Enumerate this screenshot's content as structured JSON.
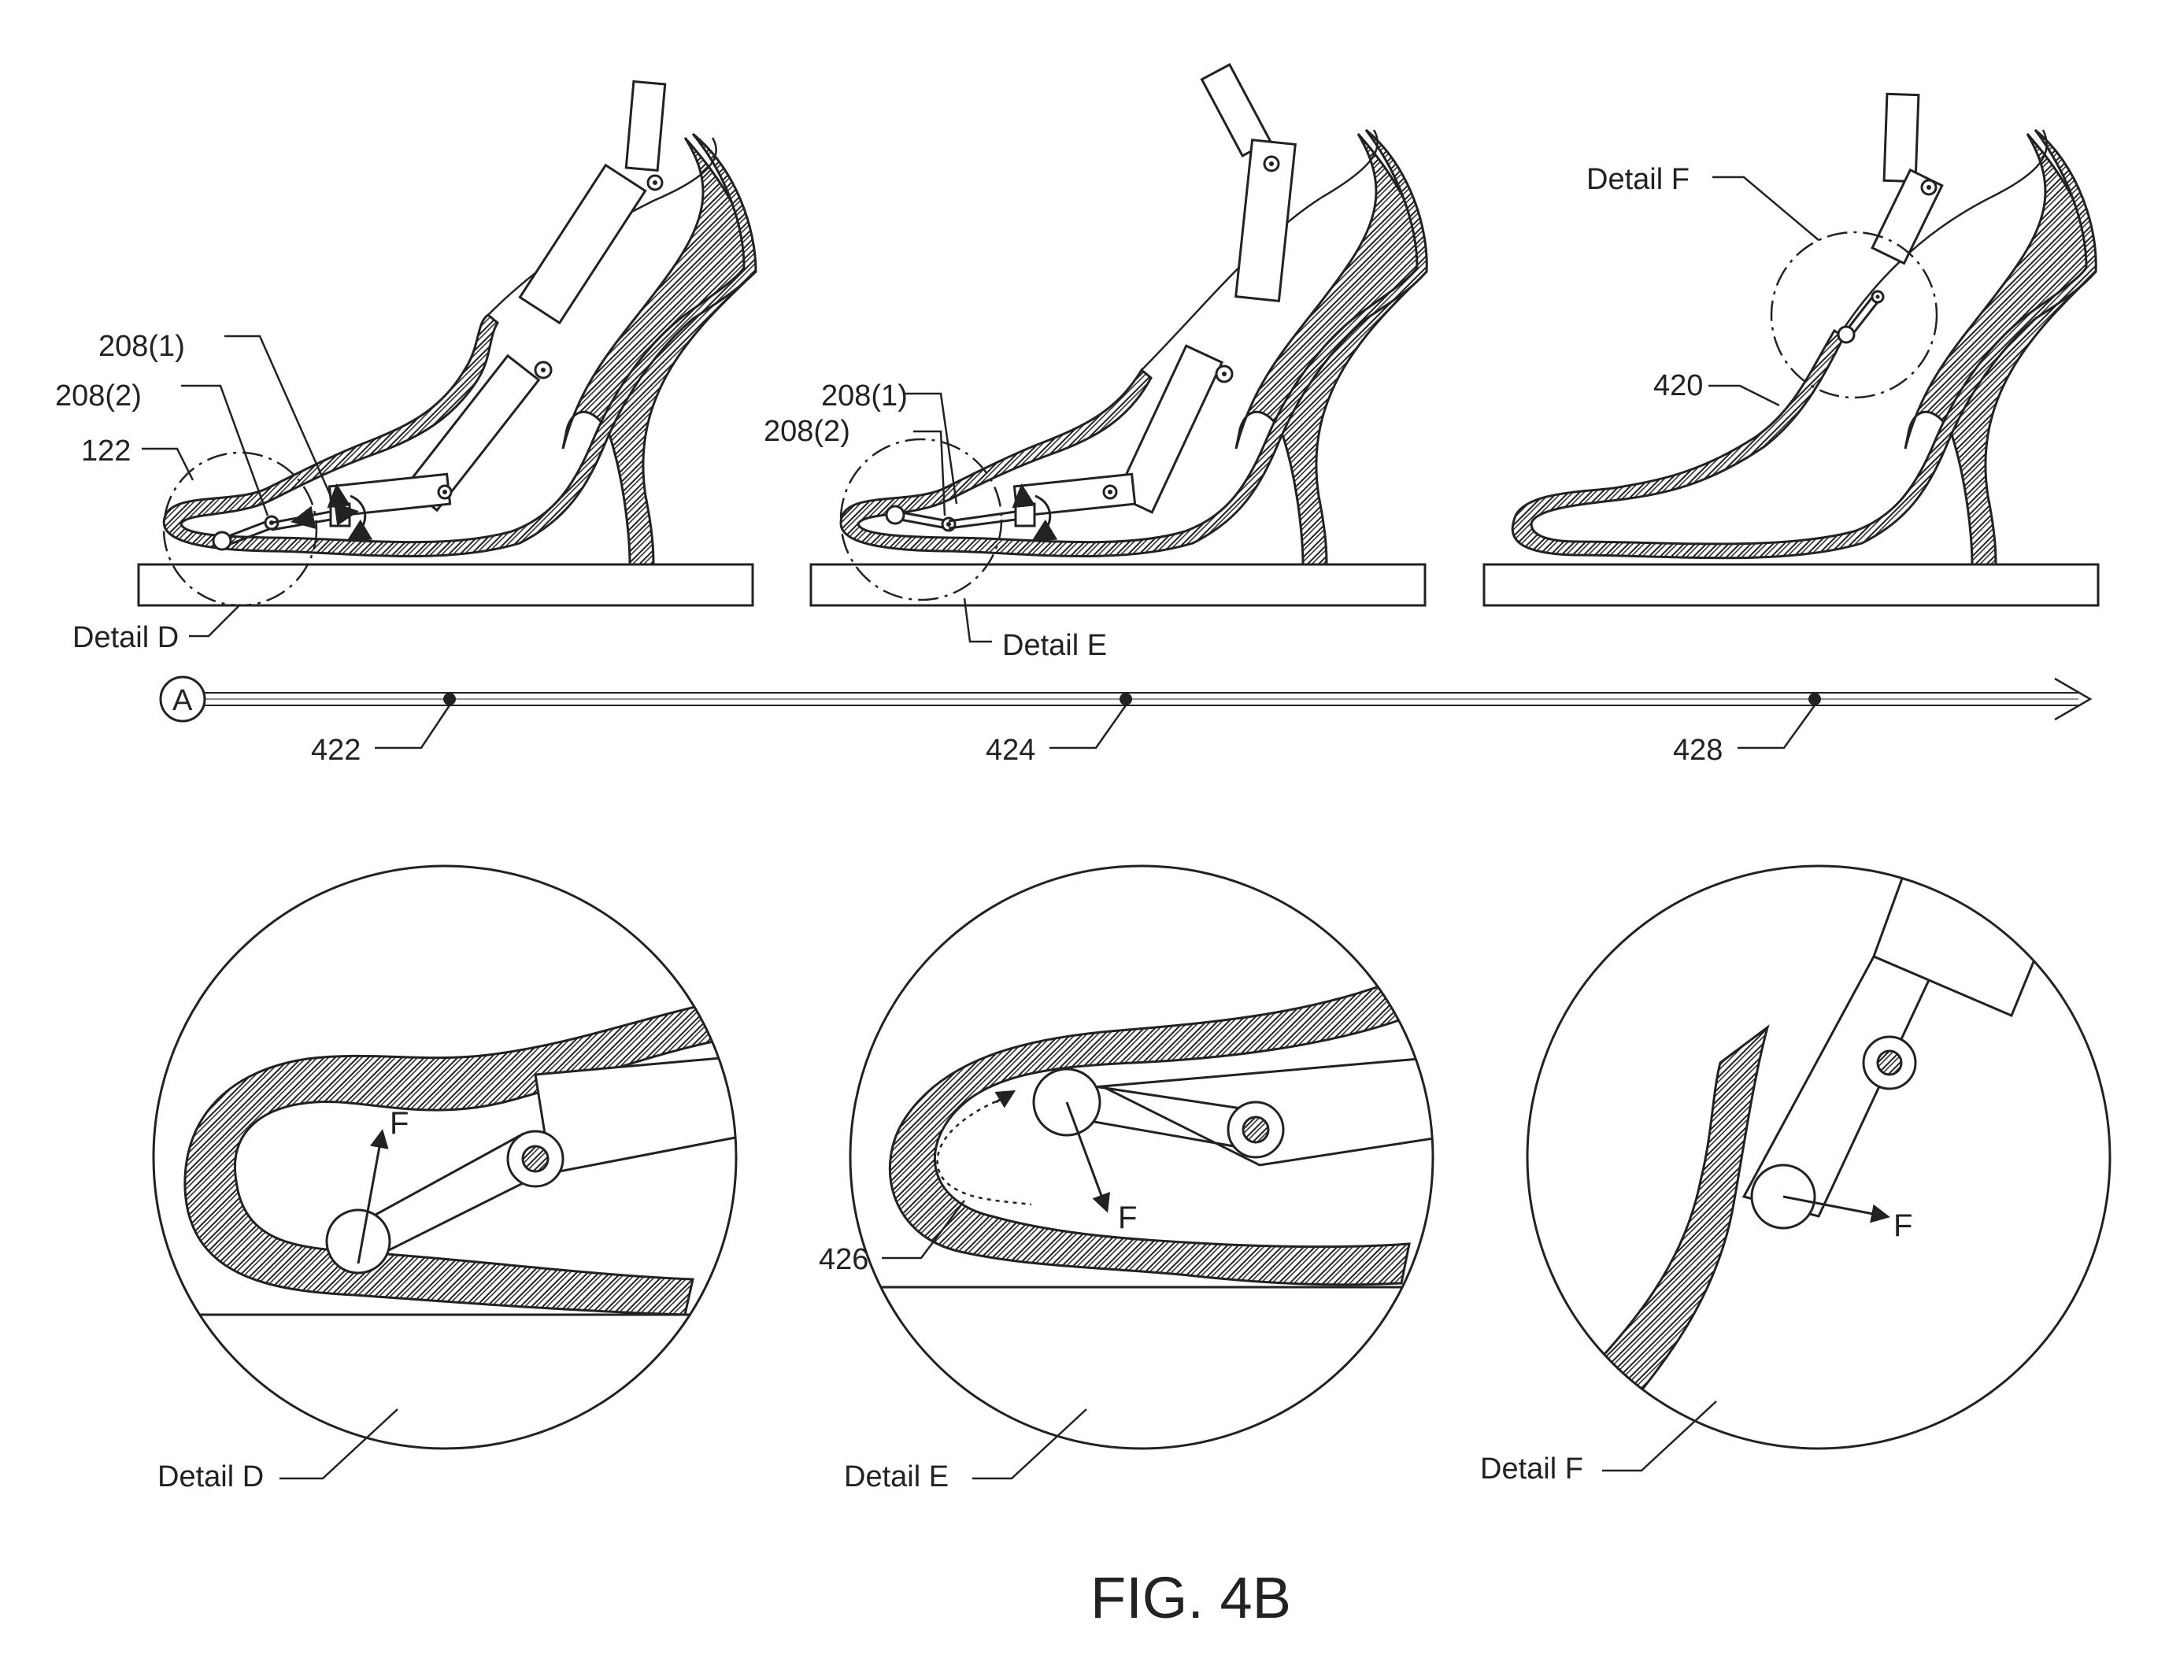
{
  "labels": {
    "d1_208_1": "208(1)",
    "d1_208_2": "208(2)",
    "d1_122": "122",
    "d1_detail": "Detail D",
    "d2_208_1": "208(1)",
    "d2_208_2": "208(2)",
    "d2_detail": "Detail E",
    "d3_detail": "Detail F",
    "d3_420": "420",
    "timeline_start": "A",
    "t1": "422",
    "t2": "424",
    "t3": "428",
    "zoom_d_force": "F",
    "zoom_e_force": "F",
    "zoom_e_426": "426",
    "zoom_f_force": "F",
    "zoom_d_detail": "Detail D",
    "zoom_e_detail": "Detail E",
    "zoom_f_detail": "Detail F",
    "caption": "FIG. 4B"
  }
}
